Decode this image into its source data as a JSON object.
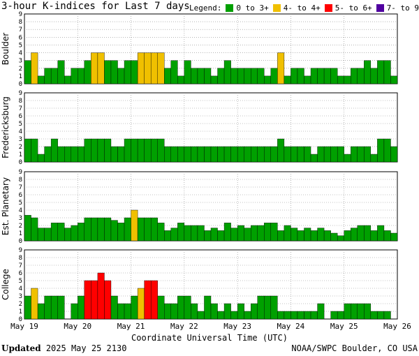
{
  "title": "3-hour K-indices for Last 7 days",
  "legend": {
    "label": "Legend:",
    "items": [
      {
        "label": "0 to 3+",
        "color": "#00a000"
      },
      {
        "label": "4- to 4+",
        "color": "#f0c000"
      },
      {
        "label": "5- to 6+",
        "color": "#ff0000"
      },
      {
        "label": "7- to 9",
        "color": "#5000a0"
      }
    ]
  },
  "footer": {
    "updated_label": "Updated",
    "updated_value": "2025 May 25 2130",
    "source": "NOAA/SWPC Boulder, CO USA"
  },
  "chart_data": [
    {
      "type": "bar",
      "ylabel": "Boulder",
      "ylim": [
        0,
        9
      ],
      "yticks": [
        0,
        1,
        2,
        3,
        4,
        5,
        6,
        7,
        8,
        9
      ],
      "xlabel": "Coordinate Universal Time (UTC)",
      "x_tick_labels": [
        "May 19",
        "May 20",
        "May 21",
        "May 22",
        "May 23",
        "May 24",
        "May 25",
        "May 26"
      ],
      "values": [
        3,
        4,
        1,
        2,
        2,
        3,
        1,
        2,
        2,
        3,
        4,
        4,
        3,
        3,
        2,
        3,
        3,
        4,
        4,
        4,
        4,
        2,
        3,
        1,
        3,
        2,
        2,
        2,
        1,
        2,
        3,
        2,
        2,
        2,
        2,
        2,
        1,
        2,
        4,
        1,
        2,
        2,
        1,
        2,
        2,
        2,
        2,
        1,
        1,
        2,
        2,
        3,
        2,
        3,
        3,
        1,
        0
      ]
    },
    {
      "type": "bar",
      "ylabel": "Fredericksburg",
      "ylim": [
        0,
        9
      ],
      "yticks": [
        0,
        1,
        2,
        3,
        4,
        5,
        6,
        7,
        8,
        9
      ],
      "values": [
        3,
        3,
        1,
        2,
        3,
        2,
        2,
        2,
        2,
        3,
        3,
        3,
        3,
        2,
        2,
        3,
        3,
        3,
        3,
        3,
        3,
        2,
        2,
        2,
        2,
        2,
        2,
        2,
        2,
        2,
        2,
        2,
        2,
        2,
        2,
        2,
        2,
        2,
        3,
        2,
        2,
        2,
        2,
        1,
        2,
        2,
        2,
        2,
        1,
        2,
        2,
        2,
        1,
        3,
        3,
        2,
        0
      ]
    },
    {
      "type": "bar",
      "ylabel": "Est. Planetary",
      "ylim": [
        0,
        9
      ],
      "yticks": [
        0,
        1,
        2,
        3,
        4,
        5,
        6,
        7,
        8,
        9
      ],
      "values": [
        3.33,
        3,
        1.67,
        1.67,
        2.33,
        2.33,
        1.67,
        2,
        2.33,
        3,
        3,
        3,
        3,
        2.67,
        2.33,
        3,
        4,
        3,
        3,
        3,
        2.33,
        1.33,
        1.67,
        2.33,
        2,
        2,
        2,
        1.33,
        1.67,
        1.33,
        2.33,
        1.67,
        2,
        1.67,
        2,
        2,
        2.33,
        2.33,
        1.33,
        2,
        1.67,
        1.33,
        1.67,
        1.33,
        1.67,
        1.33,
        1,
        0.67,
        1.33,
        1.67,
        2,
        2,
        1.33,
        2,
        1.33,
        1,
        0
      ]
    },
    {
      "type": "bar",
      "ylabel": "College",
      "ylim": [
        0,
        9
      ],
      "yticks": [
        0,
        1,
        2,
        3,
        4,
        5,
        6,
        7,
        8,
        9
      ],
      "values": [
        3,
        4,
        2,
        3,
        3,
        3,
        0,
        2,
        3,
        5,
        5,
        6,
        5,
        3,
        2,
        2,
        3,
        4,
        5,
        5,
        3,
        2,
        2,
        3,
        3,
        2,
        1,
        3,
        2,
        1,
        2,
        1,
        2,
        1,
        2,
        3,
        3,
        3,
        1,
        1,
        1,
        1,
        1,
        1,
        2,
        0,
        1,
        1,
        2,
        2,
        2,
        2,
        1,
        1,
        1,
        0,
        0
      ]
    }
  ]
}
